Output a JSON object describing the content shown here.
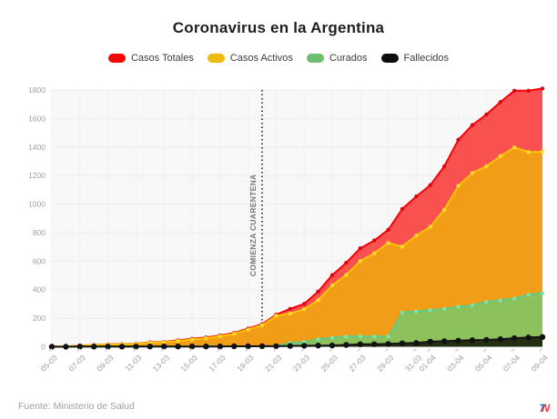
{
  "title": "Coronavirus en la Argentina",
  "footer": {
    "source": "Fuente: Ministerio de Salud",
    "logo_t": "T",
    "logo_n": "N"
  },
  "chart_data": {
    "type": "area",
    "title": "Coronavirus en la Argentina",
    "x": [
      "05-03",
      "06-03",
      "07-03",
      "08-03",
      "09-03",
      "10-03",
      "11-03",
      "12-03",
      "13-03",
      "14-03",
      "15-03",
      "16-03",
      "17-03",
      "18-03",
      "19-03",
      "20-03",
      "21-03",
      "22-03",
      "23-03",
      "24-03",
      "25-03",
      "26-03",
      "27-03",
      "28-03",
      "29-03",
      "30-03",
      "31-03",
      "01-04",
      "02-04",
      "03-04",
      "04-04",
      "05-04",
      "06-04",
      "07-04",
      "08-04",
      "09-04"
    ],
    "series": [
      {
        "name": "Casos Totales",
        "swatch": "#f50505",
        "line": "#fa0007",
        "marker": "#da0712",
        "fill": "#f9514f",
        "values": [
          1,
          2,
          8,
          12,
          17,
          19,
          21,
          31,
          34,
          45,
          56,
          65,
          79,
          97,
          128,
          158,
          225,
          266,
          301,
          387,
          502,
          589,
          690,
          745,
          820,
          966,
          1054,
          1133,
          1265,
          1451,
          1554,
          1628,
          1715,
          1795,
          1795,
          1810
        ]
      },
      {
        "name": "Casos Activos",
        "swatch": "#f0b90f",
        "line": "#fdc500",
        "marker": "#ffd92b",
        "fill": "#f29d18",
        "values": [
          1,
          2,
          7,
          11,
          16,
          18,
          19,
          28,
          31,
          41,
          51,
          60,
          74,
          91,
          122,
          151,
          217,
          233,
          263,
          327,
          430,
          504,
          601,
          655,
          728,
          702,
          779,
          841,
          960,
          1128,
          1218,
          1265,
          1337,
          1397,
          1365,
          1367
        ]
      },
      {
        "name": "Curados",
        "swatch": "#6dbf6d",
        "line": "#5ecb80",
        "marker": "#86e2a4",
        "fill": "#8cc15c",
        "values": [
          0,
          0,
          0,
          0,
          0,
          0,
          1,
          1,
          1,
          2,
          2,
          3,
          3,
          3,
          3,
          3,
          4,
          27,
          31,
          52,
          63,
          72,
          72,
          72,
          72,
          240,
          248,
          256,
          266,
          280,
          290,
          315,
          325,
          338,
          365,
          375
        ]
      },
      {
        "name": "Fallecidos",
        "swatch": "#0d0d0d",
        "line": "#141414",
        "marker": "#121212",
        "fill": "rgba(22,26,8,0.88)",
        "values": [
          0,
          0,
          1,
          1,
          1,
          1,
          1,
          2,
          2,
          2,
          2,
          2,
          2,
          3,
          3,
          4,
          4,
          6,
          7,
          8,
          9,
          13,
          17,
          18,
          20,
          24,
          27,
          36,
          39,
          43,
          46,
          48,
          53,
          60,
          65,
          68
        ]
      }
    ],
    "ylim": [
      0,
      1800
    ],
    "y_ticks": [
      0,
      200,
      400,
      600,
      800,
      1000,
      1200,
      1400,
      1600,
      1800
    ],
    "x_tick_labels": [
      "05-03",
      "07-03",
      "09-03",
      "11-03",
      "13-03",
      "15-03",
      "17-03",
      "19-03",
      "21-03",
      "23-03",
      "25-03",
      "27-03",
      "29-03",
      "31-03",
      "01-04",
      "03-04",
      "05-04",
      "07-04",
      "09-04"
    ],
    "annotation": {
      "label": "COMIENZA CUARENTENA",
      "x": "20-03"
    },
    "legend_position": "top",
    "grid": true,
    "plot_bg": "#f8f8f8",
    "grid_color": "#ececec",
    "tick_label_color": "#9e9e9e",
    "annotation_color": "#757575",
    "annotation_line_color": "#4d4d4d"
  }
}
